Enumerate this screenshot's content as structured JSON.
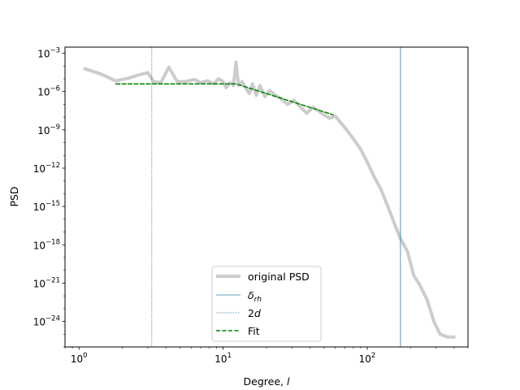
{
  "chart_data": {
    "type": "line",
    "title": "",
    "xlabel": "Degree, ",
    "xlabel_italic": "l",
    "ylabel": "PSD",
    "xscale": "log",
    "yscale": "log",
    "xlim": [
      0.8,
      500
    ],
    "ylim": [
      1e-26,
      0.003
    ],
    "grid": false,
    "legend_position": "lower-center",
    "x_ticks": [
      {
        "value": 1,
        "base": "10",
        "exp": "0"
      },
      {
        "value": 10,
        "base": "10",
        "exp": "1"
      },
      {
        "value": 100,
        "base": "10",
        "exp": "2"
      }
    ],
    "y_ticks": [
      {
        "value": 0.001,
        "base": "10",
        "exp": "−3"
      },
      {
        "value": 1e-06,
        "base": "10",
        "exp": "−6"
      },
      {
        "value": 1e-09,
        "base": "10",
        "exp": "−9"
      },
      {
        "value": 1e-12,
        "base": "10",
        "exp": "−12"
      },
      {
        "value": 1e-15,
        "base": "10",
        "exp": "−15"
      },
      {
        "value": 1e-18,
        "base": "10",
        "exp": "−18"
      },
      {
        "value": 1e-21,
        "base": "10",
        "exp": "−21"
      },
      {
        "value": 1e-24,
        "base": "10",
        "exp": "−24"
      }
    ],
    "series": [
      {
        "name": "original PSD",
        "color": "#cccccc",
        "style": "solid-thick",
        "points": [
          [
            1.1,
            6e-05
          ],
          [
            1.4,
            2.5e-05
          ],
          [
            1.8,
            7e-06
          ],
          [
            2.2,
            1.1e-05
          ],
          [
            2.6,
            2e-05
          ],
          [
            3.0,
            3e-05
          ],
          [
            3.3,
            6e-06
          ],
          [
            3.7,
            5e-06
          ],
          [
            4.2,
            8e-05
          ],
          [
            4.8,
            6e-06
          ],
          [
            5.5,
            6e-06
          ],
          [
            6.3,
            9e-06
          ],
          [
            7.0,
            5e-06
          ],
          [
            7.8,
            7e-06
          ],
          [
            8.6,
            4e-06
          ],
          [
            9.3,
            1e-05
          ],
          [
            10.0,
            6e-06
          ],
          [
            10.5,
            2e-06
          ],
          [
            11.2,
            5e-06
          ],
          [
            11.8,
            3e-06
          ],
          [
            12.3,
            0.0002
          ],
          [
            12.8,
            3e-06
          ],
          [
            13.5,
            6e-06
          ],
          [
            14.3,
            2e-06
          ],
          [
            15.2,
            7e-07
          ],
          [
            16.0,
            4e-06
          ],
          [
            17.0,
            5e-07
          ],
          [
            18.0,
            3e-06
          ],
          [
            19.5,
            4e-07
          ],
          [
            21.0,
            1.2e-06
          ],
          [
            23.0,
            5e-07
          ],
          [
            25.0,
            3e-07
          ],
          [
            28.0,
            1e-07
          ],
          [
            31.0,
            2e-07
          ],
          [
            34.0,
            7e-08
          ],
          [
            38.0,
            2e-08
          ],
          [
            42.0,
            6e-08
          ],
          [
            46.0,
            3e-08
          ],
          [
            50.0,
            1.5e-08
          ],
          [
            55.0,
            8e-09
          ],
          [
            60.0,
            1.2e-08
          ],
          [
            65.0,
            4e-09
          ],
          [
            72.0,
            1e-09
          ],
          [
            80.0,
            2e-10
          ],
          [
            90.0,
            3e-11
          ],
          [
            100.0,
            3e-12
          ],
          [
            110.0,
            3e-13
          ],
          [
            125.0,
            2e-14
          ],
          [
            140.0,
            8e-16
          ],
          [
            155.0,
            4e-17
          ],
          [
            170.0,
            3e-18
          ],
          [
            190.0,
            3e-19
          ],
          [
            210.0,
            4e-21
          ],
          [
            230.0,
            8e-22
          ],
          [
            260.0,
            5e-23
          ],
          [
            290.0,
            1e-24
          ],
          [
            320.0,
            1e-25
          ],
          [
            360.0,
            6e-26
          ],
          [
            400.0,
            6e-26
          ]
        ]
      },
      {
        "name": "δ",
        "name_sub": "rh",
        "color": "#2f7f9f",
        "style": "vline-solid",
        "x": 170
      },
      {
        "name": "2d",
        "color": "#2f7f9f",
        "style": "vline-dotted",
        "x": 3.2
      },
      {
        "name": "Fit",
        "color": "#008000",
        "style": "dashed",
        "points": [
          [
            1.8,
            4e-06
          ],
          [
            12.3,
            4e-06
          ],
          [
            58.0,
            1.5e-08
          ]
        ]
      }
    ],
    "legend": [
      {
        "key": "original",
        "label": "original PSD"
      },
      {
        "key": "delta",
        "label": "δ",
        "sub": "rh"
      },
      {
        "key": "twod",
        "label": "2",
        "italic": "d"
      },
      {
        "key": "fit",
        "label": "Fit"
      }
    ]
  }
}
